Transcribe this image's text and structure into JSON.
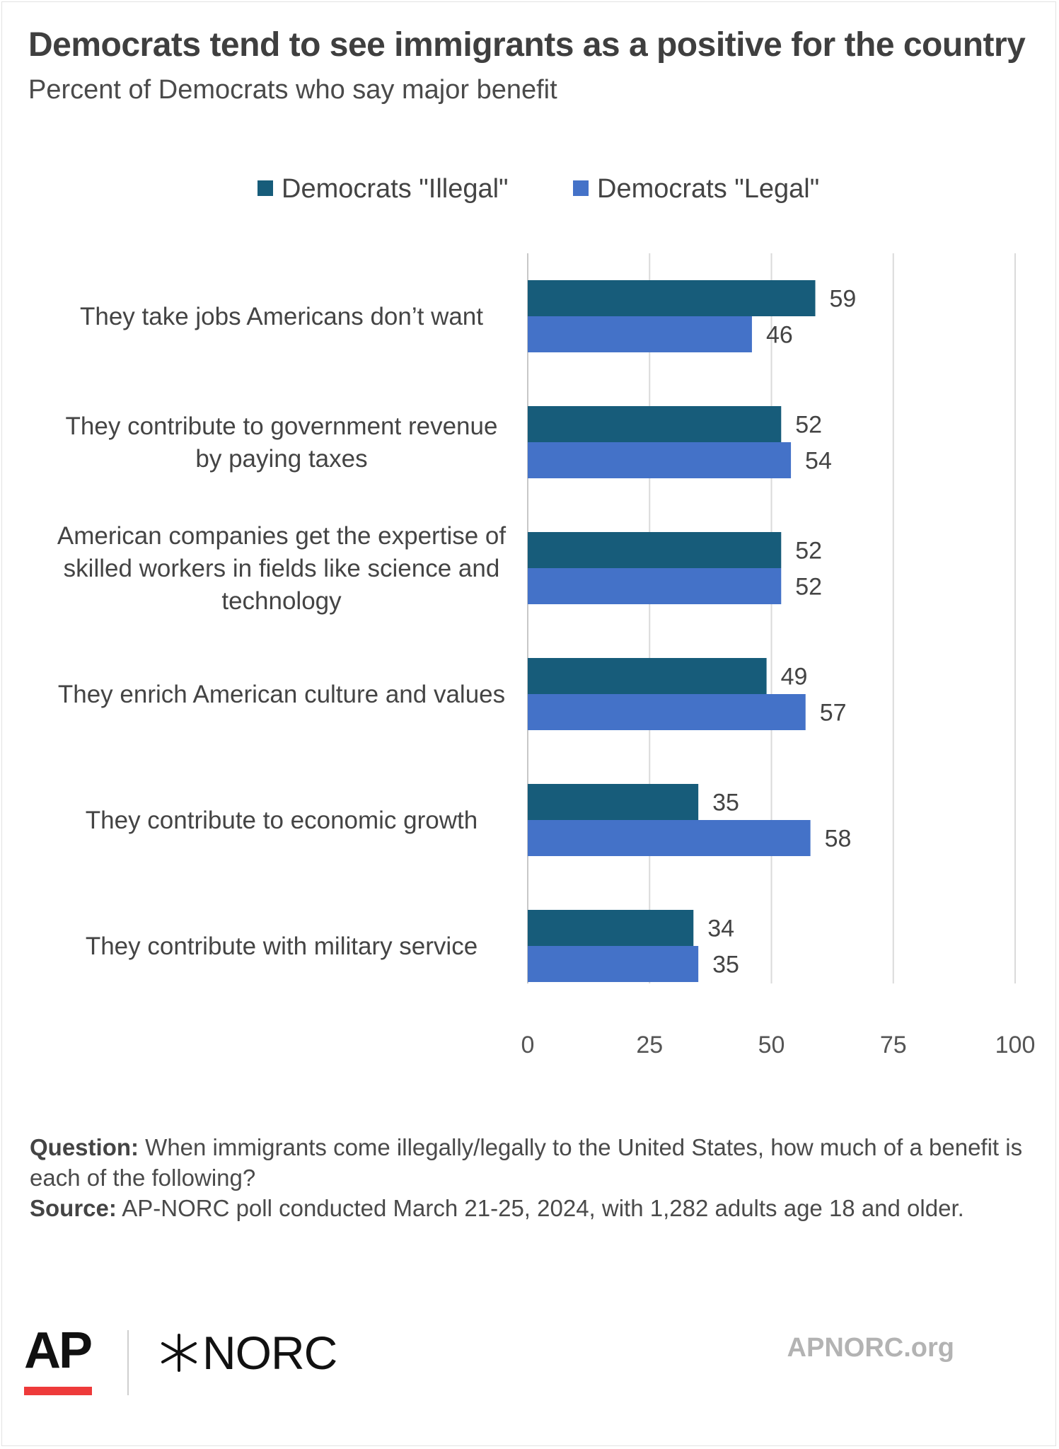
{
  "title": "Democrats tend to see immigrants as a positive for the country",
  "subtitle": "Percent of Democrats who say major benefit",
  "chart_data": {
    "type": "bar",
    "orientation": "horizontal",
    "title": "Democrats tend to see immigrants as a positive for the country",
    "subtitle": "Percent of Democrats who say major benefit",
    "categories": [
      [
        "They take jobs Americans don’t want"
      ],
      [
        "They contribute to government revenue",
        "by paying taxes"
      ],
      [
        "American companies get the expertise of",
        "skilled workers in fields like science and",
        "technology"
      ],
      [
        "They enrich American culture and values"
      ],
      [
        "They contribute to economic growth"
      ],
      [
        "They contribute with military service"
      ]
    ],
    "series": [
      {
        "name": "Democrats \"Illegal\"",
        "color": "#175c7a",
        "values": [
          59,
          52,
          52,
          49,
          35,
          34
        ]
      },
      {
        "name": "Democrats \"Legal\"",
        "color": "#4472c8",
        "values": [
          46,
          54,
          52,
          57,
          58,
          35
        ]
      }
    ],
    "xlim": [
      0,
      100
    ],
    "xticks": [
      "0",
      "25",
      "50",
      "75",
      "100"
    ],
    "xtick_values": [
      0,
      25,
      50,
      75,
      100
    ],
    "grid": true,
    "legend_position": "top-center",
    "data_labels": true
  },
  "notes": {
    "question_label": "Question:",
    "question_text": " When immigrants come illegally/legally to the United States, how much of a benefit is each of the following?",
    "source_label": "Source:",
    "source_text": " AP-NORC poll conducted March 21-25, 2024, with 1,282 adults age 18 and older."
  },
  "footer": {
    "ap_logo": "AP",
    "norc_logo": "NORC",
    "norc_icon": "norc-star-icon",
    "site": "APNORC.org"
  }
}
